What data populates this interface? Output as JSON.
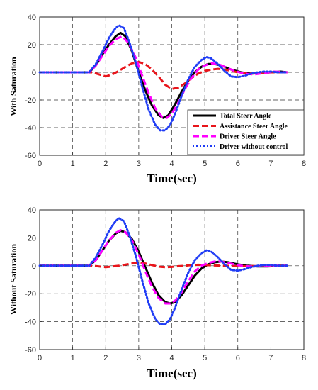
{
  "chart_data": [
    {
      "type": "line",
      "xlabel": "Time(sec)",
      "ylabel": "With Saturation",
      "xlim": [
        0,
        8
      ],
      "ylim": [
        -60,
        40
      ],
      "xticks": [
        "0",
        "1",
        "2",
        "3",
        "4",
        "5",
        "6",
        "7",
        "8"
      ],
      "yticks": [
        "-60",
        "-40",
        "-20",
        "0",
        "20",
        "40"
      ],
      "grid": true,
      "legend_position": "lower-right",
      "series": [
        {
          "name": "Total Steer Angle",
          "color": "#000000",
          "style": "solid",
          "x": [
            0,
            1.5,
            1.7,
            1.9,
            2.1,
            2.3,
            2.45,
            2.6,
            2.8,
            3.0,
            3.2,
            3.4,
            3.6,
            3.75,
            3.9,
            4.1,
            4.3,
            4.5,
            4.7,
            4.9,
            5.1,
            5.3,
            5.5,
            5.8,
            6.1,
            6.4,
            6.7,
            7.0,
            7.3,
            7.5
          ],
          "y": [
            0,
            0,
            5,
            13,
            20,
            26,
            28.5,
            26,
            15,
            0,
            -13,
            -24,
            -31,
            -33,
            -31,
            -23,
            -14,
            -6,
            0,
            4,
            6,
            6,
            5,
            2,
            0,
            -1,
            -0.5,
            0,
            0.5,
            0
          ]
        },
        {
          "name": "Assistance Steer Angle",
          "color": "#e8151b",
          "style": "dashed",
          "x": [
            0,
            1.6,
            1.8,
            2.0,
            2.2,
            2.4,
            2.6,
            2.8,
            3.0,
            3.2,
            3.4,
            3.6,
            3.8,
            4.0,
            4.2,
            4.4,
            4.6,
            4.8,
            5.0,
            5.2,
            5.4,
            5.6,
            5.8,
            6.0,
            6.3,
            6.6,
            7.0,
            7.5
          ],
          "y": [
            0,
            0,
            -1.5,
            -3,
            -1.5,
            1,
            4,
            6.5,
            7.5,
            6,
            2,
            -3,
            -9,
            -12,
            -11,
            -8,
            -4,
            -1,
            1,
            2,
            2.5,
            2,
            1,
            0,
            -1,
            -0.5,
            0,
            0
          ]
        },
        {
          "name": "Driver Steer Angle",
          "color": "#ff00ff",
          "style": "dashed",
          "x": [
            0,
            1.5,
            1.7,
            1.9,
            2.1,
            2.3,
            2.5,
            2.7,
            2.9,
            3.1,
            3.3,
            3.5,
            3.7,
            3.85,
            4.0,
            4.2,
            4.4,
            4.6,
            4.8,
            5.0,
            5.2,
            5.4,
            5.6,
            5.9,
            6.2,
            6.5,
            6.8,
            7.1,
            7.5
          ],
          "y": [
            0,
            0,
            5,
            12,
            19,
            24,
            26,
            21,
            11,
            -2,
            -15,
            -26,
            -32,
            -33,
            -30,
            -22,
            -12,
            -4,
            2,
            5,
            6.5,
            6,
            4,
            1,
            -1,
            -1.5,
            -0.5,
            0.5,
            0
          ]
        },
        {
          "name": "Driver without control",
          "color": "#1f3cf5",
          "style": "dotted",
          "x": [
            0,
            1.5,
            1.7,
            1.9,
            2.1,
            2.3,
            2.4,
            2.55,
            2.7,
            2.9,
            3.1,
            3.3,
            3.5,
            3.65,
            3.8,
            3.95,
            4.1,
            4.3,
            4.5,
            4.7,
            4.9,
            5.05,
            5.2,
            5.4,
            5.6,
            5.8,
            6.0,
            6.2,
            6.4,
            6.6,
            6.8,
            7.0,
            7.2,
            7.5
          ],
          "y": [
            0,
            0,
            6,
            15,
            25,
            32,
            34,
            32,
            23,
            8,
            -10,
            -27,
            -38,
            -42,
            -42,
            -38,
            -30,
            -17,
            -5,
            4,
            9,
            11,
            10,
            6,
            1,
            -3,
            -3.5,
            -2.5,
            -1,
            0,
            0.5,
            0.5,
            0,
            0
          ]
        }
      ]
    },
    {
      "type": "line",
      "xlabel": "Time(sec)",
      "ylabel": "Without Saturation",
      "xlim": [
        0,
        8
      ],
      "ylim": [
        -60,
        40
      ],
      "xticks": [
        "0",
        "1",
        "2",
        "3",
        "4",
        "5",
        "6",
        "7",
        "8"
      ],
      "yticks": [
        "-60",
        "-40",
        "-20",
        "0",
        "20",
        "40"
      ],
      "grid": true,
      "series": [
        {
          "color": "#000000",
          "style": "solid",
          "x": [
            0,
            1.5,
            1.7,
            1.9,
            2.1,
            2.3,
            2.45,
            2.6,
            2.8,
            3.0,
            3.2,
            3.4,
            3.6,
            3.8,
            3.95,
            4.1,
            4.3,
            4.5,
            4.7,
            4.9,
            5.1,
            5.3,
            5.5,
            5.7,
            6.0,
            6.3,
            6.6,
            6.9,
            7.2,
            7.5
          ],
          "y": [
            0,
            0,
            4,
            11,
            18,
            23,
            25,
            24,
            19,
            10,
            -1,
            -12,
            -21,
            -26,
            -27,
            -26,
            -21,
            -14,
            -7,
            -2,
            1,
            2.5,
            3,
            2.5,
            1,
            0,
            -0.5,
            -0.5,
            0,
            0
          ]
        },
        {
          "color": "#e8151b",
          "style": "dashed",
          "x": [
            0,
            1.6,
            1.8,
            2.0,
            2.2,
            2.4,
            2.6,
            2.8,
            3.0,
            3.2,
            3.4,
            3.6,
            3.8,
            4.0,
            4.2,
            4.4,
            4.6,
            4.8,
            5.0,
            5.3,
            5.6,
            5.9,
            6.2,
            6.6,
            7.0,
            7.5
          ],
          "y": [
            0,
            0,
            -0.5,
            -1,
            -0.5,
            0,
            0.8,
            1.6,
            2,
            1.6,
            0.5,
            -0.6,
            -1,
            -0.8,
            -0.3,
            0,
            0.5,
            0.7,
            0.5,
            0.2,
            0,
            -0.2,
            -0.3,
            -0.2,
            0,
            0
          ]
        },
        {
          "color": "#ff00ff",
          "style": "dashed",
          "x": [
            0,
            1.5,
            1.7,
            1.9,
            2.1,
            2.3,
            2.45,
            2.6,
            2.8,
            3.0,
            3.2,
            3.4,
            3.6,
            3.8,
            3.95,
            4.1,
            4.3,
            4.5,
            4.7,
            4.9,
            5.1,
            5.3,
            5.5,
            5.8,
            6.1,
            6.4,
            6.7,
            7.0,
            7.5
          ],
          "y": [
            0,
            0,
            4,
            11,
            18,
            23.5,
            25.5,
            24,
            18,
            8,
            -4,
            -15,
            -23,
            -27,
            -27,
            -25,
            -19,
            -11,
            -4,
            0,
            2,
            3,
            3,
            1.5,
            0,
            -0.5,
            -0.3,
            0,
            0
          ]
        },
        {
          "color": "#1f3cf5",
          "style": "dotted",
          "x": [
            0,
            1.5,
            1.7,
            1.9,
            2.1,
            2.3,
            2.4,
            2.55,
            2.7,
            2.9,
            3.1,
            3.3,
            3.5,
            3.65,
            3.8,
            3.95,
            4.1,
            4.3,
            4.5,
            4.7,
            4.9,
            5.05,
            5.2,
            5.4,
            5.6,
            5.8,
            6.0,
            6.2,
            6.4,
            6.6,
            6.8,
            7.0,
            7.2,
            7.5
          ],
          "y": [
            0,
            0,
            6,
            15,
            25,
            32,
            34,
            32,
            23,
            8,
            -10,
            -27,
            -38,
            -42,
            -42,
            -38,
            -30,
            -17,
            -5,
            4,
            9,
            11,
            10,
            6,
            1,
            -3,
            -3.5,
            -2.5,
            -1,
            0,
            0.5,
            0.5,
            0,
            0
          ]
        }
      ]
    }
  ]
}
